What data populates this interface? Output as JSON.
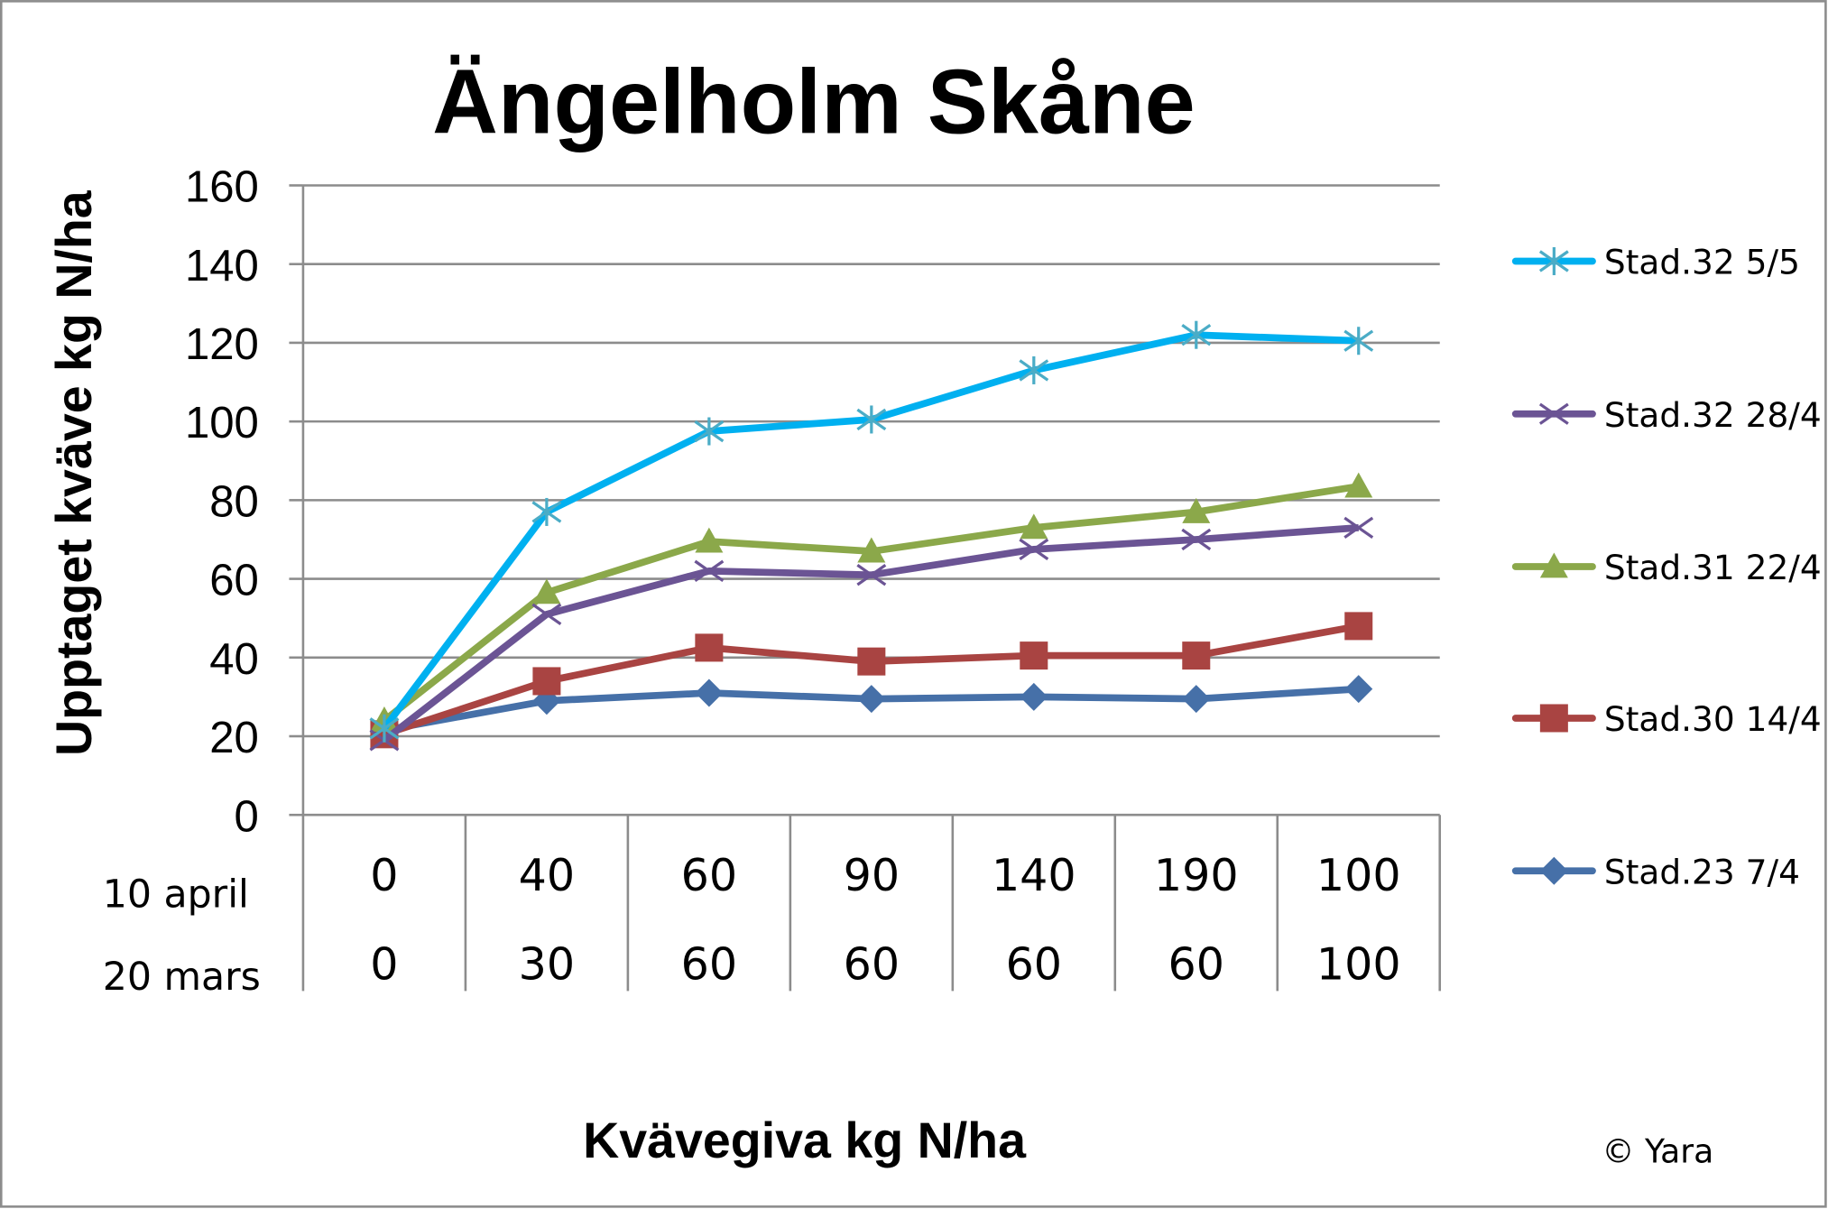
{
  "chart_data": {
    "type": "line",
    "title": "Ängelholm Skåne",
    "ylabel": "Upptaget kväve kg N/ha",
    "xlabel": "Kvävegiva kg N/ha",
    "ylim": [
      0,
      160
    ],
    "yticks": [
      "0",
      "20",
      "40",
      "60",
      "80",
      "100",
      "120",
      "140",
      "160"
    ],
    "grid": true,
    "legend_position": "right",
    "category_rows": [
      {
        "label": "10 april",
        "values": [
          "0",
          "40",
          "60",
          "90",
          "140",
          "190",
          "100"
        ]
      },
      {
        "label": "20 mars",
        "values": [
          "0",
          "30",
          "60",
          "60",
          "60",
          "60",
          "100"
        ]
      }
    ],
    "series": [
      {
        "name": "Stad.32 5/5",
        "color": "#00B0F0",
        "marker": "asterisk",
        "marker_color": "#4BACC6",
        "values": [
          22,
          77,
          97.5,
          100.5,
          113,
          122,
          120.5
        ]
      },
      {
        "name": "Stad.32 28/4",
        "color": "#7030A0",
        "line_color": "#6B5494",
        "marker": "x",
        "values": [
          19,
          51,
          62,
          61,
          67.5,
          70,
          73
        ]
      },
      {
        "name": "Stad.31 22/4",
        "color": "#8BA84A",
        "marker": "triangle",
        "values": [
          24,
          56.5,
          69.5,
          67,
          73,
          77,
          83.5
        ]
      },
      {
        "name": "Stad.30 14/4",
        "color": "#A94442",
        "marker": "square",
        "values": [
          20.5,
          34,
          42.5,
          39,
          40.5,
          40.5,
          48
        ]
      },
      {
        "name": "Stad.23 7/4",
        "color": "#4670A8",
        "marker": "diamond",
        "values": [
          21.5,
          29,
          31,
          29.5,
          30,
          29.5,
          32
        ]
      }
    ]
  },
  "copyright": "© Yara"
}
